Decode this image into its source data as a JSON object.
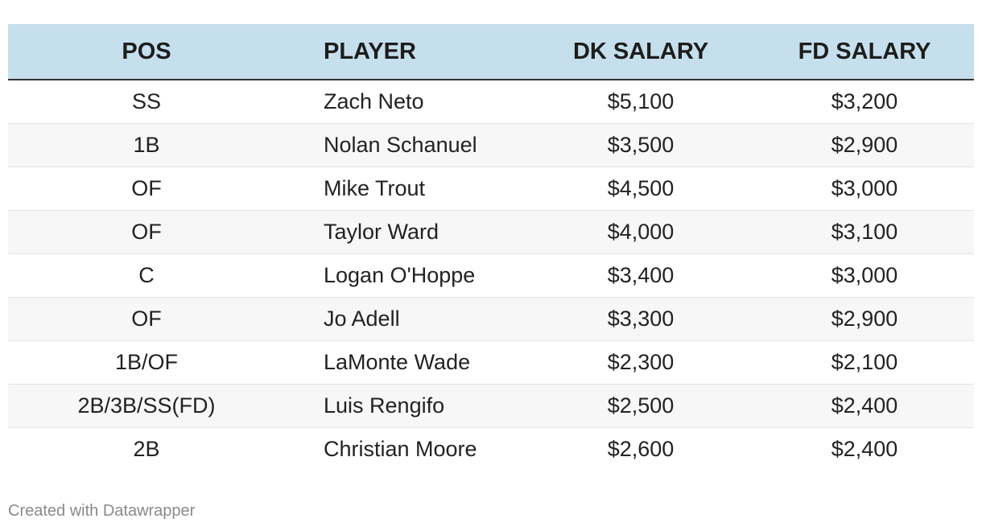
{
  "chart_data": {
    "type": "table",
    "columns": [
      "POS",
      "PLAYER",
      "DK SALARY",
      "FD SALARY"
    ],
    "rows": [
      [
        "SS",
        "Zach Neto",
        "$5,100",
        "$3,200"
      ],
      [
        "1B",
        "Nolan Schanuel",
        "$3,500",
        "$2,900"
      ],
      [
        "OF",
        "Mike Trout",
        "$4,500",
        "$3,000"
      ],
      [
        "OF",
        "Taylor Ward",
        "$4,000",
        "$3,100"
      ],
      [
        "C",
        "Logan O'Hoppe",
        "$3,400",
        "$3,000"
      ],
      [
        "OF",
        "Jo Adell",
        "$3,300",
        "$2,900"
      ],
      [
        "1B/OF",
        "LaMonte Wade",
        "$2,300",
        "$2,100"
      ],
      [
        "2B/3B/SS(FD)",
        "Luis Rengifo",
        "$2,500",
        "$2,400"
      ],
      [
        "2B",
        "Christian Moore",
        "$2,600",
        "$2,400"
      ]
    ]
  },
  "style": {
    "header_bg": "#c5dfec",
    "row_alt_bg": "#f7f7f7",
    "row_bg": "#ffffff"
  },
  "footer": {
    "credit": "Created with Datawrapper"
  }
}
